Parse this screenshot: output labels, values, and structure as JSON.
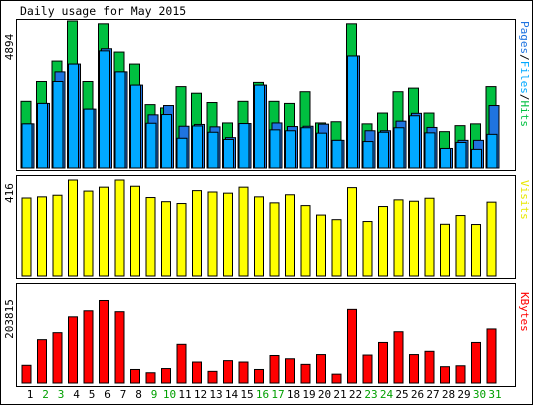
{
  "chart_data": [
    {
      "type": "bar",
      "title": "Daily usage for May 2015",
      "ylabel_max": "4894",
      "legend": [
        {
          "text": "Pages",
          "color": "#1f74e0"
        },
        {
          "text": "Files",
          "color": "#00a8ff"
        },
        {
          "text": "Hits",
          "color": "#00c040"
        }
      ],
      "legend_sep": "/",
      "ymax": 4894,
      "categories": [
        "1",
        "2",
        "3",
        "4",
        "5",
        "6",
        "7",
        "8",
        "9",
        "10",
        "11",
        "12",
        "13",
        "14",
        "15",
        "16",
        "17",
        "18",
        "19",
        "20",
        "21",
        "22",
        "23",
        "24",
        "25",
        "26",
        "27",
        "28",
        "29",
        "30",
        "31"
      ],
      "weekend_days": [
        "2",
        "3",
        "9",
        "10",
        "16",
        "17",
        "23",
        "24",
        "30",
        "31"
      ],
      "series": [
        {
          "name": "Hits",
          "color": "#00c040",
          "values": [
            2220,
            2880,
            3560,
            4894,
            2880,
            4800,
            3860,
            3460,
            2110,
            2000,
            2710,
            2490,
            2180,
            1500,
            2220,
            2850,
            2220,
            2150,
            2540,
            1500,
            1540,
            4800,
            1470,
            1830,
            2540,
            2660,
            1830,
            1210,
            1410,
            1470,
            2710
          ]
        },
        {
          "name": "Files",
          "color": "#00a8ff",
          "values": [
            1470,
            2150,
            2880,
            3460,
            1960,
            3900,
            3200,
            2760,
            1490,
            1780,
            990,
            1400,
            1190,
            950,
            1480,
            2760,
            1270,
            1240,
            1340,
            1160,
            920,
            3730,
            880,
            1190,
            1340,
            1740,
            1170,
            650,
            850,
            620,
            1120
          ]
        },
        {
          "name": "Pages",
          "color": "#1f74e0",
          "values": [
            1470,
            2150,
            3200,
            3460,
            1960,
            3970,
            3200,
            2760,
            1770,
            2080,
            1390,
            1450,
            1370,
            1010,
            1480,
            2760,
            1500,
            1380,
            1390,
            1460,
            920,
            3730,
            1240,
            1240,
            1560,
            1820,
            1350,
            650,
            920,
            920,
            2080
          ]
        }
      ]
    },
    {
      "type": "bar",
      "ylabel_max": "416",
      "legend": [
        {
          "text": "Visits",
          "color": "#e8e800"
        }
      ],
      "ymax": 416,
      "categories": [
        "1",
        "2",
        "3",
        "4",
        "5",
        "6",
        "7",
        "8",
        "9",
        "10",
        "11",
        "12",
        "13",
        "14",
        "15",
        "16",
        "17",
        "18",
        "19",
        "20",
        "21",
        "22",
        "23",
        "24",
        "25",
        "26",
        "27",
        "28",
        "29",
        "30",
        "31"
      ],
      "series": [
        {
          "name": "Visits",
          "color": "#ffff00",
          "values": [
            338,
            343,
            350,
            416,
            368,
            385,
            416,
            389,
            340,
            322,
            314,
            370,
            364,
            359,
            385,
            343,
            317,
            352,
            305,
            264,
            244,
            383,
            236,
            301,
            330,
            324,
            337,
            224,
            262,
            223,
            320
          ]
        }
      ]
    },
    {
      "type": "bar",
      "ylabel_max": "203815",
      "legend": [
        {
          "text": "KBytes",
          "color": "#ff0000"
        }
      ],
      "ymax": 203815,
      "categories": [
        "1",
        "2",
        "3",
        "4",
        "5",
        "6",
        "7",
        "8",
        "9",
        "10",
        "11",
        "12",
        "13",
        "14",
        "15",
        "16",
        "17",
        "18",
        "19",
        "20",
        "21",
        "22",
        "23",
        "24",
        "25",
        "26",
        "27",
        "28",
        "29",
        "30",
        "31"
      ],
      "series": [
        {
          "name": "KBytes",
          "color": "#ff0000",
          "values": [
            38000,
            93000,
            108000,
            142000,
            155000,
            177000,
            153000,
            29000,
            22000,
            31000,
            83000,
            45000,
            25000,
            48000,
            45000,
            29000,
            59000,
            52000,
            40000,
            61000,
            19000,
            158000,
            60000,
            87000,
            110000,
            61000,
            68000,
            35000,
            37000,
            87000,
            116000
          ]
        }
      ]
    }
  ]
}
